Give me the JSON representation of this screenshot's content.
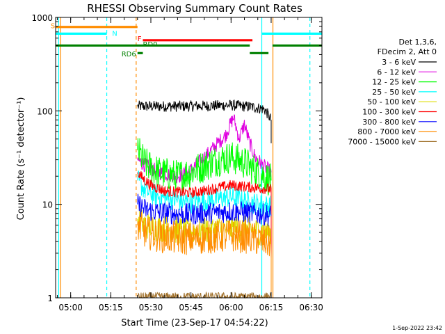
{
  "chart_data": {
    "type": "line",
    "title": "RHESSI Observing Summary Count Rates",
    "xlabel": "Start Time (23-Sep-17 04:54:22)",
    "ylabel": "Count Rate (s⁻¹ detector⁻¹)",
    "x_units": "minutes since 04:54:22",
    "xlim": [
      "04:54:22",
      "06:34:00"
    ],
    "x_ticks": [
      "05:00",
      "05:15",
      "05:30",
      "05:45",
      "06:00",
      "06:15",
      "06:30"
    ],
    "ylim": [
      1,
      1000
    ],
    "y_scale": "log",
    "y_ticks": [
      "1",
      "10",
      "100",
      "1000"
    ],
    "legend": {
      "header": [
        "Det 1,3,6,",
        "FDecim 2, Att 0"
      ],
      "placement": "right",
      "entries": [
        {
          "label": "3 - 6 keV",
          "color": "#000000"
        },
        {
          "label": "6 - 12 keV",
          "color": "#e000e0"
        },
        {
          "label": "12 - 25 keV",
          "color": "#00ff00"
        },
        {
          "label": "25 - 50 keV",
          "color": "#00ffff"
        },
        {
          "label": "50 - 100 keV",
          "color": "#dede00"
        },
        {
          "label": "100 - 300 keV",
          "color": "#ff0000"
        },
        {
          "label": "300 - 800 keV",
          "color": "#0000ff"
        },
        {
          "label": "800 - 7000 keV",
          "color": "#ff8c00"
        },
        {
          "label": "7000 - 15000 keV",
          "color": "#a0702a"
        }
      ]
    },
    "series": [
      {
        "name": "3 - 6 keV",
        "color": "#000000",
        "noise": 0.06,
        "points": [
          [
            "05:25",
            112
          ],
          [
            "05:30",
            112
          ],
          [
            "05:40",
            112
          ],
          [
            "05:50",
            113
          ],
          [
            "05:55",
            114
          ],
          [
            "06:00",
            115
          ],
          [
            "06:05",
            112
          ],
          [
            "06:08",
            110
          ],
          [
            "06:12",
            105
          ],
          [
            "06:13",
            100
          ],
          [
            "06:15",
            80
          ],
          [
            "06:15",
            45
          ]
        ]
      },
      {
        "name": "6 - 12 keV",
        "color": "#e000e0",
        "noise": 0.08,
        "points": [
          [
            "05:25",
            30
          ],
          [
            "05:28",
            26
          ],
          [
            "05:33",
            22
          ],
          [
            "05:40",
            20
          ],
          [
            "05:44",
            22
          ],
          [
            "05:48",
            28
          ],
          [
            "05:51",
            34
          ],
          [
            "05:54",
            42
          ],
          [
            "05:58",
            55
          ],
          [
            "06:00",
            75
          ],
          [
            "06:01",
            85
          ],
          [
            "06:03",
            50
          ],
          [
            "06:05",
            72
          ],
          [
            "06:07",
            45
          ],
          [
            "06:09",
            32
          ],
          [
            "06:12",
            26
          ],
          [
            "06:15",
            22
          ]
        ]
      },
      {
        "name": "12 - 25 keV",
        "color": "#00ff00",
        "noise": 0.18,
        "points": [
          [
            "05:25",
            38
          ],
          [
            "05:28",
            27
          ],
          [
            "05:33",
            22
          ],
          [
            "05:40",
            20
          ],
          [
            "05:45",
            22
          ],
          [
            "05:50",
            26
          ],
          [
            "05:55",
            30
          ],
          [
            "06:00",
            32
          ],
          [
            "06:05",
            28
          ],
          [
            "06:10",
            22
          ],
          [
            "06:15",
            18
          ]
        ]
      },
      {
        "name": "25 - 50 keV",
        "color": "#00ffff",
        "noise": 0.12,
        "points": [
          [
            "05:25",
            18
          ],
          [
            "05:28",
            14
          ],
          [
            "05:33",
            12
          ],
          [
            "05:40",
            11
          ],
          [
            "05:45",
            10.5
          ],
          [
            "05:50",
            11
          ],
          [
            "05:55",
            11.5
          ],
          [
            "06:00",
            12
          ],
          [
            "06:05",
            11
          ],
          [
            "06:10",
            10
          ],
          [
            "06:15",
            9.5
          ]
        ]
      },
      {
        "name": "50 - 100 keV",
        "color": "#dede00",
        "noise": 0.15,
        "points": [
          [
            "05:25",
            7
          ],
          [
            "05:28",
            6
          ],
          [
            "05:33",
            5.6
          ],
          [
            "05:40",
            5.3
          ],
          [
            "05:45",
            5.2
          ],
          [
            "05:50",
            5.3
          ],
          [
            "05:55",
            5.4
          ],
          [
            "06:00",
            5.5
          ],
          [
            "06:05",
            5.4
          ],
          [
            "06:10",
            5.2
          ],
          [
            "06:15",
            5
          ]
        ]
      },
      {
        "name": "100 - 300 keV",
        "color": "#ff0000",
        "noise": 0.06,
        "points": [
          [
            "05:25",
            22
          ],
          [
            "05:27",
            19
          ],
          [
            "05:30",
            16
          ],
          [
            "05:35",
            14
          ],
          [
            "05:40",
            13.5
          ],
          [
            "05:45",
            13.3
          ],
          [
            "05:50",
            14
          ],
          [
            "05:55",
            15
          ],
          [
            "06:00",
            16
          ],
          [
            "06:05",
            15.5
          ],
          [
            "06:10",
            15
          ],
          [
            "06:15",
            14.5
          ],
          [
            "06:15",
            2
          ]
        ]
      },
      {
        "name": "300 - 800 keV",
        "color": "#0000ff",
        "noise": 0.12,
        "points": [
          [
            "05:25",
            10
          ],
          [
            "05:28",
            8.8
          ],
          [
            "05:33",
            8.2
          ],
          [
            "05:40",
            7.9
          ],
          [
            "05:45",
            7.8
          ],
          [
            "05:50",
            8
          ],
          [
            "05:55",
            8.2
          ],
          [
            "06:00",
            8.4
          ],
          [
            "06:05",
            8.2
          ],
          [
            "06:10",
            7.9
          ],
          [
            "06:15",
            7.6
          ]
        ]
      },
      {
        "name": "800 - 7000 keV",
        "color": "#ff8c00",
        "noise": 0.18,
        "points": [
          [
            "05:25",
            6
          ],
          [
            "05:28",
            5
          ],
          [
            "05:33",
            4.6
          ],
          [
            "05:40",
            4.3
          ],
          [
            "05:45",
            4.3
          ],
          [
            "05:50",
            4.4
          ],
          [
            "05:55",
            4.5
          ],
          [
            "06:00",
            4.6
          ],
          [
            "06:05",
            4.5
          ],
          [
            "06:10",
            4.2
          ],
          [
            "06:15",
            3.8
          ],
          [
            "06:15",
            1
          ]
        ]
      },
      {
        "name": "7000 - 15000 keV",
        "color": "#a0702a",
        "noise": 0.05,
        "points": [
          [
            "05:25",
            1.02
          ],
          [
            "06:15",
            1.02
          ]
        ]
      }
    ],
    "vertical_lines": [
      {
        "x": "04:55:30",
        "color": "#00ffff",
        "style": "solid"
      },
      {
        "x": "04:56:10",
        "color": "#ff8c00",
        "style": "solid"
      },
      {
        "x": "05:13:30",
        "color": "#00ffff",
        "style": "dashed"
      },
      {
        "x": "05:24:30",
        "color": "#ff8c00",
        "style": "dashed"
      },
      {
        "x": "06:11:30",
        "color": "#00ffff",
        "style": "solid"
      },
      {
        "x": "06:15:40",
        "color": "#ff8c00",
        "style": "solid"
      },
      {
        "x": "06:29:30",
        "color": "#00ffff",
        "style": "dashed"
      }
    ],
    "flag_bars": [
      {
        "label": "S",
        "color": "#ff8c00",
        "y": 790,
        "segments": [
          [
            "04:54:22",
            "05:25"
          ]
        ],
        "label_x": "04:52:30",
        "label_y": 820
      },
      {
        "label": "N",
        "color": "#00ffff",
        "y": 670,
        "segments": [
          [
            "04:54:22",
            "05:13:30"
          ],
          [
            "06:11:30",
            "06:34"
          ]
        ],
        "label_x": "05:15:30",
        "label_y": 680
      },
      {
        "label": "F",
        "color": "#ff0000",
        "y": 570,
        "segments": [
          [
            "05:27",
            "06:08"
          ]
        ],
        "label_x": "05:25",
        "label_y": 600
      },
      {
        "label": "RD0",
        "color": "#008000",
        "y": 500,
        "segments": [
          [
            "04:54:22",
            "06:07"
          ],
          [
            "06:15:30",
            "06:34"
          ]
        ],
        "label_x": "05:27",
        "label_y": 520
      },
      {
        "label": "RD6",
        "color": "#008000",
        "y": 415,
        "segments": [
          [
            "05:25",
            "05:27"
          ],
          [
            "06:07",
            "06:14"
          ]
        ],
        "label_x": "05:19",
        "label_y": 410
      }
    ]
  },
  "footer": {
    "stamp": "1-Sep-2022 23:42"
  }
}
